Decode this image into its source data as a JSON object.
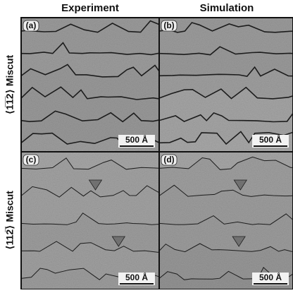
{
  "column_headers": [
    "Experiment",
    "Simulation"
  ],
  "row_labels": [
    "⟨1̅1̅2⟩ Miscut",
    "⟨112̅⟩ Miscut"
  ],
  "panels": [
    {
      "label": "(a)",
      "scale_bar": "500 Å"
    },
    {
      "label": "(b)",
      "scale_bar": "500 Å"
    },
    {
      "label": "(c)",
      "scale_bar": "500 Å"
    },
    {
      "label": "(d)",
      "scale_bar": "500 Å"
    }
  ]
}
